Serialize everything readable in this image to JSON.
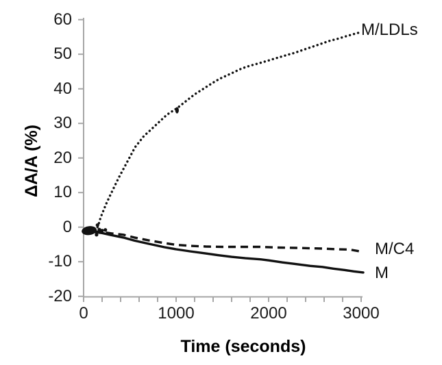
{
  "figure": {
    "background": "#ffffff",
    "axis_color": "#a6a6a6",
    "data_color": "#111111",
    "text_color": "#1a1a1a"
  },
  "chart_data": {
    "type": "line",
    "title": "",
    "xlabel": "Time (seconds)",
    "ylabel": "ΔA/A (%)",
    "xlim": [
      0,
      3000
    ],
    "ylim": [
      -20,
      60
    ],
    "grid": false,
    "x_major_ticks": [
      0,
      1000,
      2000,
      3000
    ],
    "x_minor_tick_interval": 200,
    "y_ticks": [
      60,
      50,
      40,
      30,
      20,
      10,
      0,
      -10,
      -20
    ],
    "legend_position": "labels-at-line-ends",
    "start_cluster": {
      "t": 60,
      "v": -1.0
    },
    "artifact_point": {
      "t": 1010,
      "v": 33.8
    },
    "series": [
      {
        "name": "M/LDLs",
        "label": "M/LDLs",
        "style": "dotted",
        "points": [
          [
            150,
            0
          ],
          [
            163,
            0.9
          ],
          [
            185,
            2.9
          ],
          [
            210,
            4.5
          ],
          [
            240,
            6.5
          ],
          [
            280,
            8.8
          ],
          [
            320,
            11.0
          ],
          [
            378,
            14.2
          ],
          [
            460,
            18.3
          ],
          [
            556,
            23.1
          ],
          [
            650,
            26.3
          ],
          [
            720,
            28.0
          ],
          [
            800,
            30.0
          ],
          [
            900,
            32.5
          ],
          [
            1020,
            34.6
          ],
          [
            1100,
            36.3
          ],
          [
            1200,
            38.4
          ],
          [
            1300,
            40.1
          ],
          [
            1400,
            41.8
          ],
          [
            1470,
            42.9
          ],
          [
            1600,
            44.5
          ],
          [
            1710,
            45.9
          ],
          [
            1800,
            46.7
          ],
          [
            1910,
            47.5
          ],
          [
            2000,
            48.2
          ],
          [
            2100,
            49.0
          ],
          [
            2200,
            49.8
          ],
          [
            2280,
            50.4
          ],
          [
            2400,
            51.5
          ],
          [
            2500,
            52.4
          ],
          [
            2650,
            53.8
          ],
          [
            2750,
            54.5
          ],
          [
            2850,
            55.3
          ],
          [
            2970,
            56.2
          ]
        ]
      },
      {
        "name": "M/C4",
        "label": "M/C4",
        "style": "dashed",
        "points": [
          [
            110,
            -1.2
          ],
          [
            200,
            -1.4
          ],
          [
            300,
            -1.8
          ],
          [
            430,
            -2.2
          ],
          [
            550,
            -3.0
          ],
          [
            700,
            -3.8
          ],
          [
            874,
            -4.6
          ],
          [
            1000,
            -5.1
          ],
          [
            1150,
            -5.4
          ],
          [
            1320,
            -5.6
          ],
          [
            1500,
            -5.7
          ],
          [
            1700,
            -5.7
          ],
          [
            1910,
            -5.7
          ],
          [
            2100,
            -5.9
          ],
          [
            2300,
            -6.0
          ],
          [
            2580,
            -6.2
          ],
          [
            2750,
            -6.4
          ],
          [
            2880,
            -6.5
          ],
          [
            2985,
            -7.0
          ]
        ]
      },
      {
        "name": "M",
        "label": "M",
        "style": "solid",
        "points": [
          [
            110,
            -1.4
          ],
          [
            200,
            -1.7
          ],
          [
            300,
            -2.3
          ],
          [
            430,
            -3.0
          ],
          [
            550,
            -3.9
          ],
          [
            700,
            -4.8
          ],
          [
            874,
            -5.8
          ],
          [
            1000,
            -6.4
          ],
          [
            1150,
            -7.0
          ],
          [
            1320,
            -7.6
          ],
          [
            1450,
            -8.1
          ],
          [
            1600,
            -8.6
          ],
          [
            1750,
            -9.0
          ],
          [
            1910,
            -9.3
          ],
          [
            2000,
            -9.6
          ],
          [
            2150,
            -10.2
          ],
          [
            2300,
            -10.7
          ],
          [
            2450,
            -11.2
          ],
          [
            2580,
            -11.5
          ],
          [
            2700,
            -12.0
          ],
          [
            2820,
            -12.4
          ],
          [
            2920,
            -12.8
          ],
          [
            3022,
            -13.1
          ]
        ]
      }
    ]
  }
}
